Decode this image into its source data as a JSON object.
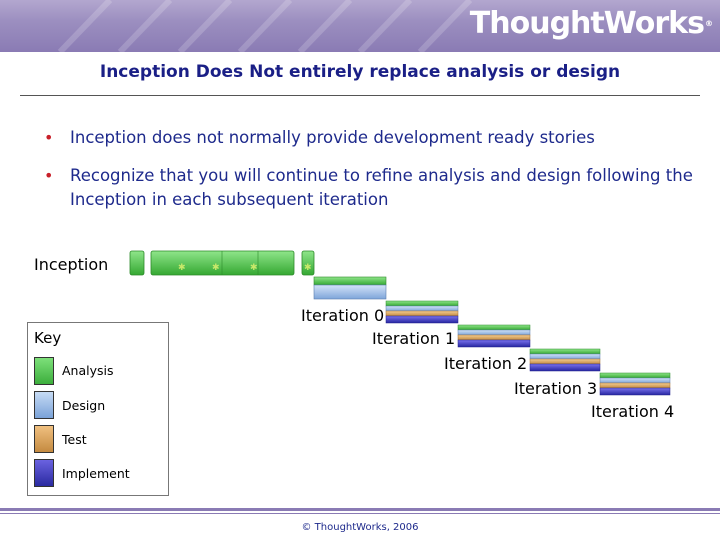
{
  "header": {
    "logo_text": "ThoughtWorks",
    "logo_mark": "®",
    "band_color": "#9c8fc0"
  },
  "slide": {
    "title": "Inception Does Not entirely replace analysis or design",
    "bullets": [
      "Inception does not normally provide development ready stories",
      "Recognize that you will continue to refine analysis and design following the Inception in each subsequent iteration"
    ]
  },
  "diagram": {
    "inception_label": "Inception",
    "iteration_labels": [
      "Iteration 0",
      "Iteration 1",
      "Iteration 2",
      "Iteration 3",
      "Iteration 4"
    ],
    "key": {
      "title": "Key",
      "items": [
        {
          "label": "Analysis",
          "color": "#4fc04c"
        },
        {
          "label": "Design",
          "color": "#9dbde6"
        },
        {
          "label": "Test",
          "color": "#d9a55c"
        },
        {
          "label": "Implement",
          "color": "#3c36c0"
        }
      ]
    }
  },
  "footer": {
    "copyright": "© ThoughtWorks, 2006"
  }
}
